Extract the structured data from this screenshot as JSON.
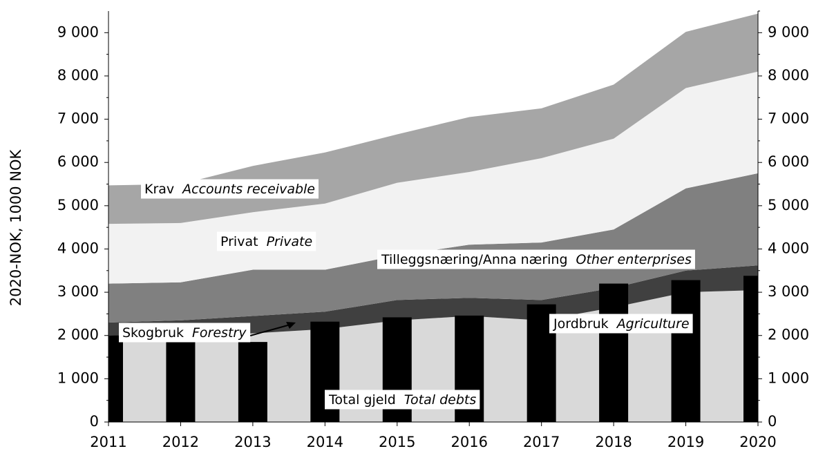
{
  "chart_data": {
    "type": "stacked-area-bar",
    "ylabel": "2020-NOK, 1000 NOK",
    "x": [
      2011,
      2012,
      2013,
      2014,
      2015,
      2016,
      2017,
      2018,
      2019,
      2020
    ],
    "xlim": [
      2011,
      2020
    ],
    "xticks": [
      2011,
      2012,
      2013,
      2014,
      2015,
      2016,
      2017,
      2018,
      2019,
      2020
    ],
    "ylim": [
      0,
      9500
    ],
    "yticks": [
      0,
      {
        "value": 1000,
        "label": "1 000"
      },
      {
        "value": 2000,
        "label": "2 000"
      },
      {
        "value": 3000,
        "label": "3 000"
      },
      {
        "value": 4000,
        "label": "4 000"
      },
      {
        "value": 5000,
        "label": "5 000"
      },
      {
        "value": 6000,
        "label": "6 000"
      },
      {
        "value": 7000,
        "label": "7 000"
      },
      {
        "value": 8000,
        "label": "8 000"
      },
      {
        "value": 9000,
        "label": "9 000"
      }
    ],
    "y2lim": [
      0,
      9500
    ],
    "y2ticks": [
      0,
      {
        "value": 1000,
        "label": "1 000"
      },
      {
        "value": 2000,
        "label": "2 000"
      },
      {
        "value": 3000,
        "label": "3 000"
      },
      {
        "value": 4000,
        "label": "4 000"
      },
      {
        "value": 5000,
        "label": "5 000"
      },
      {
        "value": 6000,
        "label": "6 000"
      },
      {
        "value": 7000,
        "label": "7 000"
      },
      {
        "value": 8000,
        "label": "8 000"
      },
      {
        "value": 9000,
        "label": "9 000"
      }
    ],
    "series": [
      {
        "name": "Jordbruk",
        "name_en": "Agriculture",
        "color": "#d9d9d9",
        "values": [
          2000,
          1950,
          2050,
          2150,
          2350,
          2450,
          2350,
          2650,
          3000,
          3050
        ]
      },
      {
        "name": "Skogbruk",
        "name_en": "Forestry",
        "color": "#404040",
        "values": [
          300,
          400,
          400,
          400,
          470,
          420,
          470,
          450,
          500,
          570
        ]
      },
      {
        "name": "Tilleggsnæring/Anna næring",
        "name_en": "Other enterprises",
        "color": "#808080",
        "values": [
          900,
          880,
          1070,
          970,
          1030,
          1230,
          1330,
          1350,
          1900,
          2130
        ]
      },
      {
        "name": "Privat",
        "name_en": "Private",
        "color": "#f2f2f2",
        "values": [
          1380,
          1370,
          1330,
          1530,
          1680,
          1680,
          1950,
          2100,
          2320,
          2350
        ]
      },
      {
        "name": "Krav",
        "name_en": "Accounts receivable",
        "color": "#a6a6a6",
        "values": [
          890,
          900,
          1070,
          1180,
          1120,
          1270,
          1150,
          1250,
          1300,
          1340
        ]
      }
    ],
    "bars": {
      "name": "Total gjeld",
      "name_en": "Total debts",
      "color": "#000000",
      "values": [
        2000,
        1900,
        1850,
        2320,
        2420,
        2460,
        2720,
        3200,
        3280,
        3380
      ]
    }
  }
}
